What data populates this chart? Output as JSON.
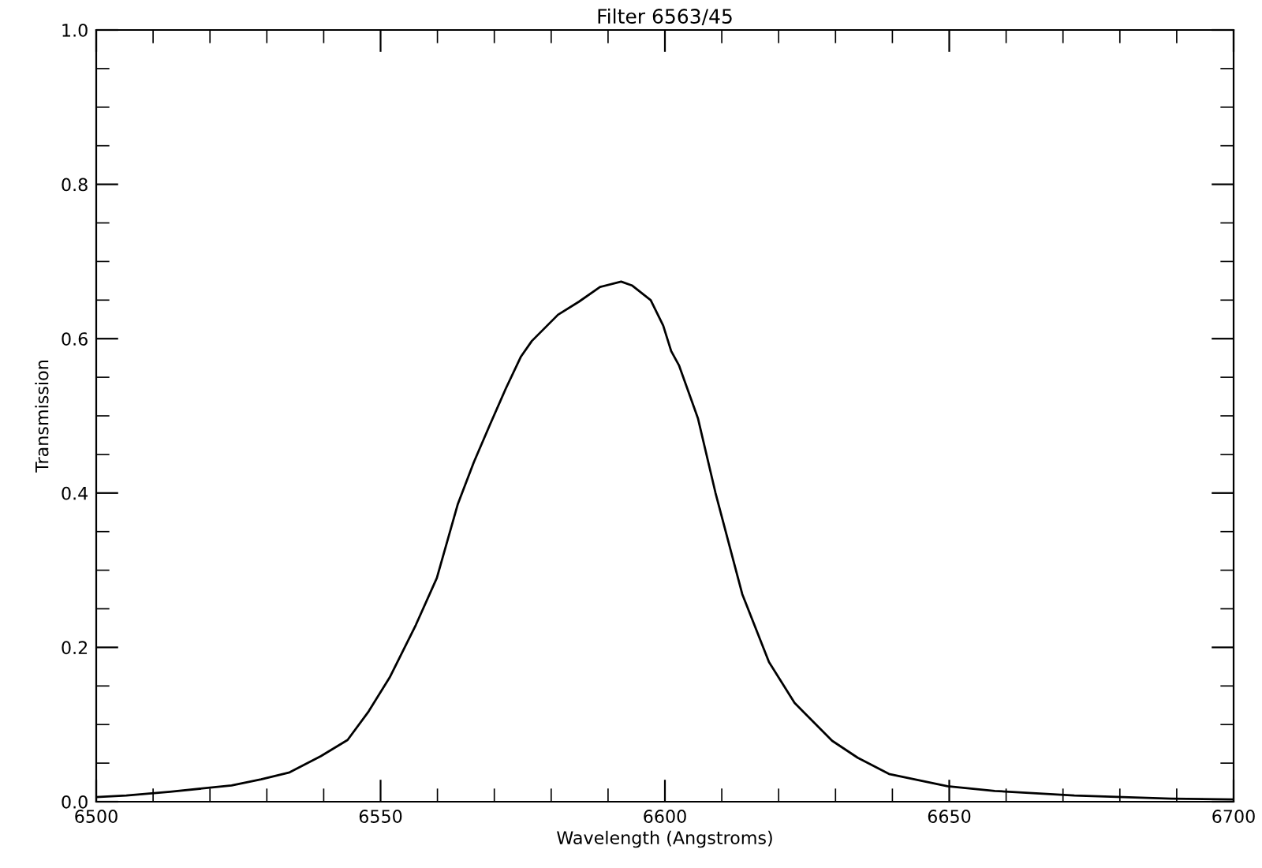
{
  "chart_data": {
    "type": "line",
    "title": "Filter 6563/45",
    "xlabel": "Wavelength (Angstroms)",
    "ylabel": "Transmission",
    "series": [
      {
        "color": "#000000",
        "x": [
          6500,
          6505.3,
          6513,
          6523.8,
          6529,
          6534,
          6539.5,
          6544.2,
          6547.9,
          6551.6,
          6556.2,
          6559.9,
          6563.6,
          6566.4,
          6569.2,
          6572,
          6574.7,
          6576.6,
          6581.2,
          6584.9,
          6588.6,
          6592.3,
          6594.2,
          6597.5,
          6599.7,
          6601.1,
          6602.5,
          6605.8,
          6608.9,
          6613.6,
          6618.3,
          6622.8,
          6629.4,
          6633.9,
          6639.4,
          6649.7,
          6658,
          6672,
          6689,
          6700
        ],
        "values": [
          0.006,
          0.008,
          0.013,
          0.021,
          0.029,
          0.038,
          0.059,
          0.08,
          0.117,
          0.161,
          0.229,
          0.29,
          0.386,
          0.44,
          0.488,
          0.535,
          0.577,
          0.597,
          0.631,
          0.648,
          0.667,
          0.674,
          0.669,
          0.65,
          0.617,
          0.584,
          0.565,
          0.497,
          0.4,
          0.269,
          0.181,
          0.128,
          0.079,
          0.057,
          0.036,
          0.02,
          0.014,
          0.008,
          0.004,
          0.003
        ]
      }
    ],
    "xlim": [
      6500,
      6700
    ],
    "xticks": [
      6500,
      6550,
      6600,
      6650,
      6700
    ],
    "ylim": [
      0.0,
      1.0
    ],
    "yticks": [
      {
        "value": 0.0,
        "label": "0.0"
      },
      {
        "value": 0.2,
        "label": "0.2"
      },
      {
        "value": 0.4,
        "label": "0.4"
      },
      {
        "value": 0.6,
        "label": "0.6"
      },
      {
        "value": 0.8,
        "label": "0.8"
      },
      {
        "value": 1.0,
        "label": "1.0"
      }
    ],
    "grid": false,
    "legend": false,
    "marker": "none",
    "line_style": "solid"
  }
}
